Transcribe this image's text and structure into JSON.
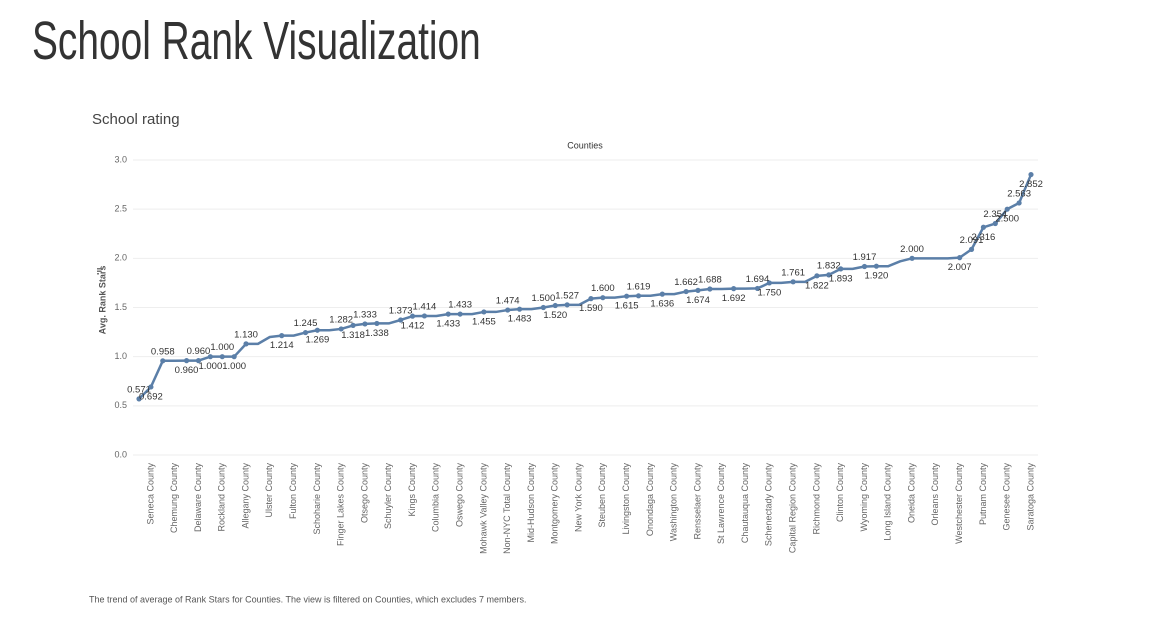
{
  "page_title": "School Rank Visualization",
  "caption": "The trend of average of Rank Stars for Counties. The view is filtered on Counties, which excludes 7 members.",
  "chart_data": {
    "type": "line",
    "title": "School rating",
    "x_label": "Counties",
    "y_label": "Avg. Rank Stars",
    "color": "#5b7fa8",
    "grid": true,
    "ylim": [
      0,
      3
    ],
    "yticks": [
      {
        "value": 0,
        "label": "0.0"
      },
      {
        "value": 0.5,
        "label": "0.5"
      },
      {
        "value": 1,
        "label": "1.0"
      },
      {
        "value": 1.5,
        "label": "1.5"
      },
      {
        "value": 2,
        "label": "2.0"
      },
      {
        "value": 2.5,
        "label": "2.5"
      },
      {
        "value": 3,
        "label": "3.0"
      }
    ],
    "categories": [
      null,
      "Seneca County",
      null,
      "Chemung County",
      null,
      "Delaware County",
      null,
      "Rockland County",
      null,
      "Allegany County",
      null,
      "Ulster County",
      null,
      "Fulton County",
      null,
      "Schoharie County",
      null,
      "Finger Lakes County",
      null,
      "Otsego County",
      null,
      "Schuyler County",
      null,
      "Kings County",
      null,
      "Columbia County",
      null,
      "Oswego County",
      null,
      "Mohawk Valley County",
      null,
      "Non-NYC Total County",
      null,
      "Mid-Hudson County",
      null,
      "Montgomery County",
      null,
      "New York County",
      null,
      "Steuben County",
      null,
      "Livingston County",
      null,
      "Onondaga County",
      null,
      "Washington County",
      null,
      "Rensselaer County",
      null,
      "St Lawrence County",
      null,
      "Chautauqua County",
      null,
      "Schenectady County",
      null,
      "Capital Region County",
      null,
      "Richmond County",
      null,
      "Clinton County",
      null,
      "Wyoming County",
      null,
      "Long Island County",
      null,
      "Oneida County",
      null,
      "Orleans County",
      null,
      "Westchester County",
      null,
      "Putnam County",
      null,
      "Genesee County",
      null,
      "Saratoga County"
    ],
    "values": [
      0.571,
      0.692,
      0.958,
      0.958,
      0.96,
      0.96,
      1.0,
      1.0,
      1.0,
      1.13,
      1.13,
      1.2,
      1.214,
      1.214,
      1.245,
      1.269,
      1.269,
      1.282,
      1.318,
      1.333,
      1.338,
      1.338,
      1.373,
      1.412,
      1.414,
      1.414,
      1.433,
      1.433,
      1.433,
      1.455,
      1.455,
      1.474,
      1.483,
      1.483,
      1.5,
      1.52,
      1.527,
      1.527,
      1.59,
      1.6,
      1.6,
      1.615,
      1.619,
      1.619,
      1.636,
      1.636,
      1.662,
      1.674,
      1.688,
      1.688,
      1.692,
      1.692,
      1.694,
      1.75,
      1.75,
      1.761,
      1.761,
      1.822,
      1.832,
      1.893,
      1.893,
      1.917,
      1.92,
      1.92,
      1.97,
      2.0,
      2.0,
      2.0,
      2.0,
      2.007,
      2.091,
      2.316,
      2.354,
      2.5,
      2.563,
      2.852
    ],
    "value_labels": [
      "0.571",
      "0.692",
      "0.958",
      null,
      "0.960",
      "0.960",
      "1.000",
      "1.000",
      "1.000",
      "1.130",
      null,
      null,
      "1.214",
      null,
      "1.245",
      "1.269",
      null,
      "1.282",
      "1.318",
      "1.333",
      "1.338",
      null,
      "1.373",
      "1.412",
      "1.414",
      null,
      "1.433",
      "1.433",
      null,
      "1.455",
      null,
      "1.474",
      "1.483",
      null,
      "1.500",
      "1.520",
      "1.527",
      null,
      "1.590",
      "1.600",
      null,
      "1.615",
      "1.619",
      null,
      "1.636",
      null,
      "1.662",
      "1.674",
      "1.688",
      null,
      "1.692",
      null,
      "1.694",
      "1.750",
      null,
      "1.761",
      null,
      "1.822",
      "1.832",
      "1.893",
      null,
      "1.917",
      "1.920",
      null,
      null,
      "2.000",
      null,
      null,
      null,
      "2.007",
      "2.091",
      "2.316",
      "2.354",
      "2.500",
      "2.563",
      "2.852"
    ]
  }
}
